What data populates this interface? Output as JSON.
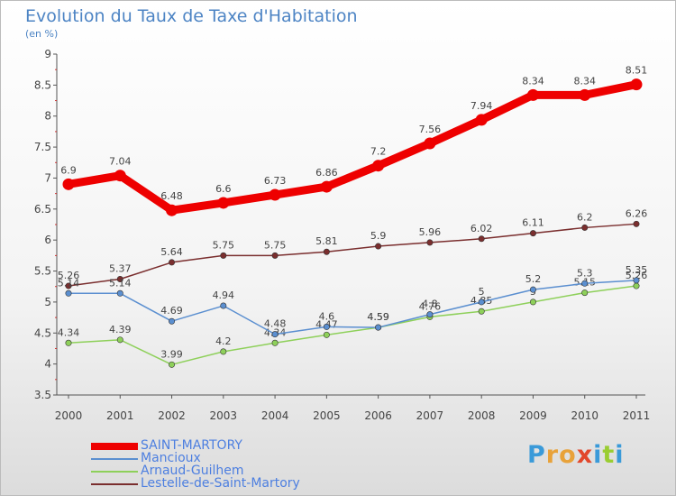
{
  "chart_data": {
    "type": "line",
    "title": "Evolution du Taux de Taxe d'Habitation",
    "subtitle": "(en %)",
    "x": [
      "2000",
      "2001",
      "2002",
      "2003",
      "2004",
      "2005",
      "2006",
      "2007",
      "2008",
      "2009",
      "2010",
      "2011"
    ],
    "ylim": [
      3.5,
      9
    ],
    "yticks": [
      "3.5",
      "4",
      "4.5",
      "5",
      "5.5",
      "6",
      "6.5",
      "7",
      "7.5",
      "8",
      "8.5",
      "9"
    ],
    "grid": false,
    "legend_position": "bottom-left",
    "series": [
      {
        "name": "SAINT-MARTORY",
        "color": "#ee0000",
        "values": [
          6.9,
          7.04,
          6.48,
          6.6,
          6.73,
          6.86,
          7.2,
          7.56,
          7.94,
          8.34,
          8.34,
          8.51
        ],
        "labels": [
          "6.9",
          "7.04",
          "6.48",
          "6.6",
          "6.73",
          "6.86",
          "7.2",
          "7.56",
          "7.94",
          "8.34",
          "8.34",
          "8.51"
        ]
      },
      {
        "name": "Mancioux",
        "color": "#5b8fd0",
        "values": [
          5.14,
          5.14,
          4.69,
          4.94,
          4.48,
          4.6,
          4.59,
          4.8,
          5.0,
          5.2,
          5.3,
          5.35
        ],
        "labels": [
          "5.14",
          "5.14",
          "4.69",
          "4.94",
          "4.48",
          "4.6",
          "4.59",
          "4.8",
          "5",
          "5.2",
          "5.3",
          "5.35"
        ]
      },
      {
        "name": "Arnaud-Guilhem",
        "color": "#8ed05a",
        "values": [
          4.34,
          4.39,
          3.99,
          4.2,
          4.34,
          4.47,
          4.59,
          4.76,
          4.85,
          5.0,
          5.15,
          5.26
        ],
        "labels": [
          "4.34",
          "4.39",
          "3.99",
          "4.2",
          "4.34",
          "4.47",
          "4.59",
          "4.76",
          "4.85",
          "5",
          "5.15",
          "5.26"
        ]
      },
      {
        "name": "Lestelle-de-Saint-Martory",
        "color": "#7a2e2e",
        "values": [
          5.26,
          5.37,
          5.64,
          5.75,
          5.75,
          5.81,
          5.9,
          5.96,
          6.02,
          6.11,
          6.2,
          6.26
        ],
        "labels": [
          "5.26",
          "5.37",
          "5.64",
          "5.75",
          "5.75",
          "5.81",
          "5.9",
          "5.96",
          "6.02",
          "6.11",
          "6.2",
          "6.26"
        ]
      }
    ]
  },
  "logo": {
    "text": "Proxiti",
    "colors": [
      "#3a9ad9",
      "#e8a23a",
      "#e8a23a",
      "#e2472b",
      "#3a9ad9",
      "#9acd32",
      "#3a9ad9"
    ]
  }
}
